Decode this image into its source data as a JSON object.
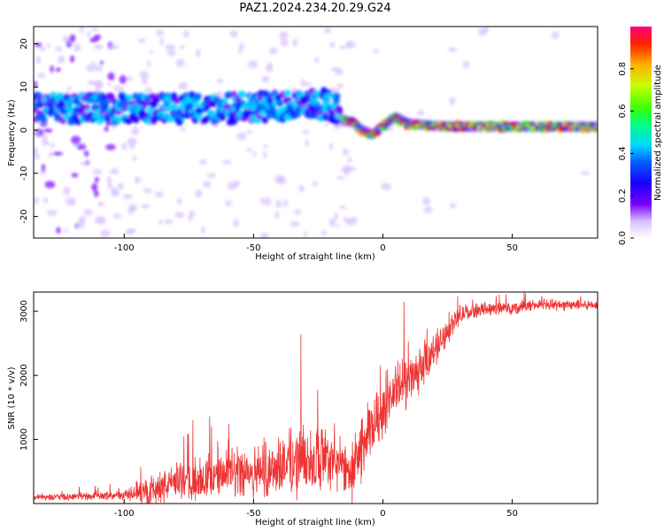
{
  "title": "PAZ1.2024.234.20.29.G24",
  "colors": {
    "snr_line": "#ee3333",
    "spectrum_core": "#00e0ff",
    "spectrum_mid": "#3a00ff",
    "spectrum_low": "#c8a8ff",
    "axis": "#000000"
  },
  "chart_data": [
    {
      "type": "heatmap",
      "title": "PAZ1.2024.234.20.29.G24",
      "xlabel": "Height of straight line (km)",
      "ylabel": "Frequency (Hz)",
      "xlim": [
        -135,
        83
      ],
      "ylim": [
        -25,
        24
      ],
      "x_ticks": [
        -100,
        -50,
        0,
        50
      ],
      "y_ticks": [
        -20,
        -10,
        0,
        10,
        20
      ],
      "colorbar": {
        "label": "Normalized spectral amplitude",
        "range": [
          0,
          1
        ],
        "ticks": [
          0.0,
          0.2,
          0.4,
          0.6,
          0.8
        ],
        "colormap": [
          "#ffffff",
          "#d8c0ff",
          "#7a00ff",
          "#1a00ff",
          "#0060ff",
          "#00d8ff",
          "#00ff80",
          "#40ff00",
          "#c8ff00",
          "#ffb000",
          "#ff2000",
          "#ff0080"
        ]
      },
      "ridge": {
        "x": [
          -135,
          -120,
          -100,
          -80,
          -60,
          -40,
          -30,
          -22,
          -18,
          -15,
          -12,
          -8,
          -4,
          0,
          5,
          10,
          20,
          30,
          50,
          83
        ],
        "y": [
          5,
          5,
          5,
          5,
          5,
          5.5,
          6,
          6,
          5,
          2,
          2,
          0,
          -1,
          1,
          3,
          1.5,
          1,
          0.8,
          0.8,
          0.8
        ]
      }
    },
    {
      "type": "line",
      "title": "",
      "xlabel": "Height of straight line (km)",
      "ylabel": "SNR (10 * v/v)",
      "xlim": [
        -135,
        83
      ],
      "ylim": [
        0,
        3300
      ],
      "x_ticks": [
        -100,
        -50,
        0,
        50
      ],
      "y_ticks": [
        1000,
        2000,
        3000
      ],
      "trend": {
        "x": [
          -135,
          -120,
          -100,
          -90,
          -80,
          -70,
          -60,
          -50,
          -40,
          -30,
          -20,
          -12,
          -8,
          -5,
          0,
          5,
          10,
          15,
          20,
          25,
          30,
          35,
          40,
          50,
          60,
          70,
          83
        ],
        "y": [
          100,
          110,
          130,
          200,
          350,
          400,
          450,
          500,
          600,
          700,
          650,
          500,
          900,
          1100,
          1500,
          1800,
          1900,
          2100,
          2400,
          2700,
          2950,
          3000,
          3050,
          3050,
          3100,
          3100,
          3100
        ]
      },
      "noise_amplitude": {
        "x": [
          -135,
          -100,
          -90,
          -60,
          -30,
          -15,
          -5,
          10,
          25,
          35,
          83
        ],
        "y": [
          60,
          80,
          300,
          450,
          700,
          500,
          600,
          500,
          250,
          120,
          100
        ]
      }
    }
  ]
}
